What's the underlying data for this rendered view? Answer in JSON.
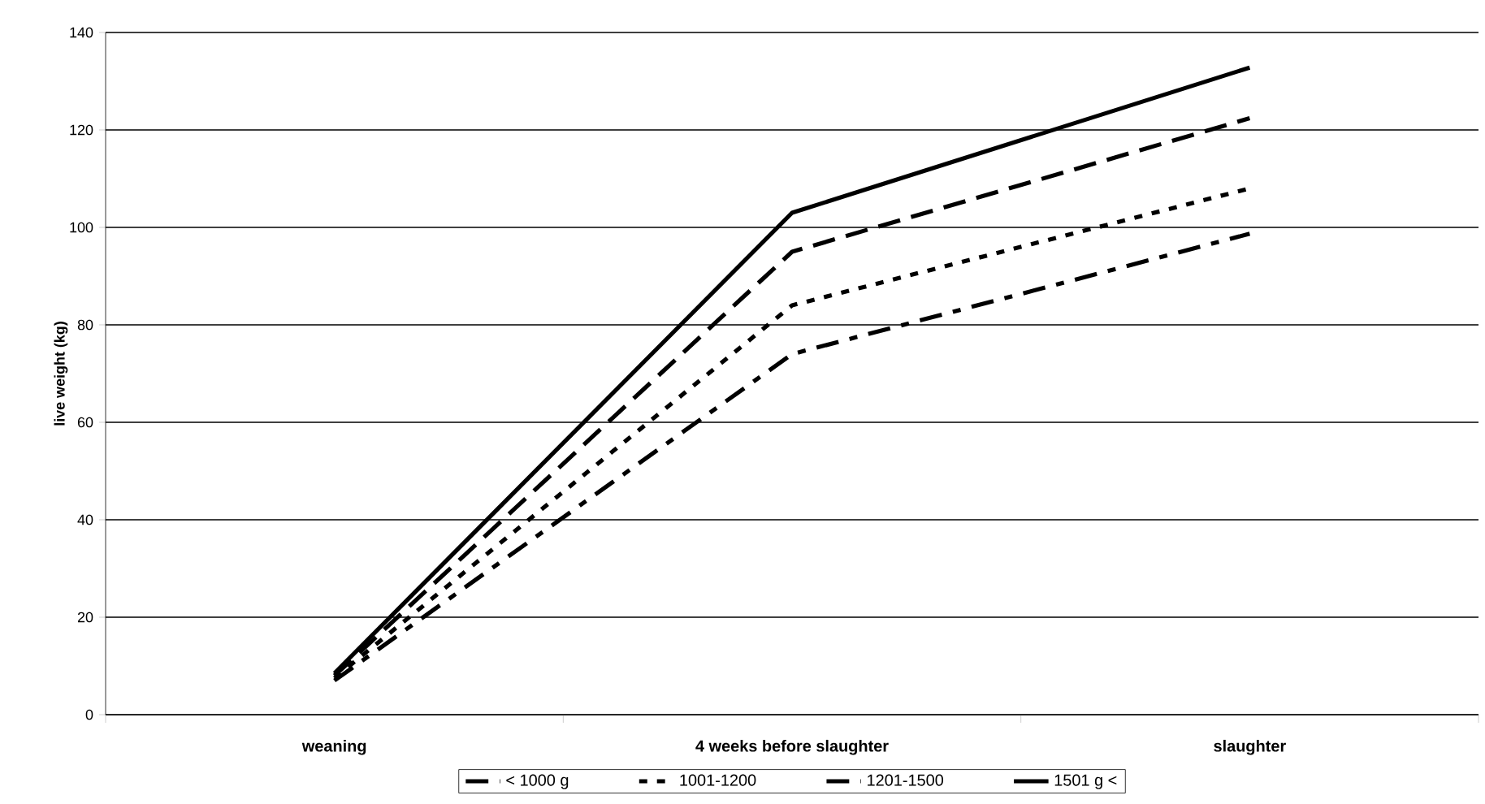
{
  "chart_data": {
    "type": "line",
    "ylabel": "live weight (kg)",
    "categories": [
      "weaning",
      "4 weeks before slaughter",
      "slaughter"
    ],
    "series": [
      {
        "name": "< 1000 g",
        "color": "#000000",
        "line_style": "dashdot",
        "values": [
          7,
          74,
          98.7
        ]
      },
      {
        "name": "1001-1200",
        "color": "#000000",
        "line_style": "dotted",
        "values": [
          7.5,
          84,
          108
        ]
      },
      {
        "name": "1201-1500",
        "color": "#000000",
        "line_style": "dashed",
        "values": [
          8,
          95,
          122.4
        ]
      },
      {
        "name": "1501 g <",
        "color": "#000000",
        "line_style": "solid",
        "values": [
          8.5,
          103,
          132.8
        ]
      }
    ],
    "ylim": [
      0,
      140
    ],
    "yticks": [
      0,
      20,
      40,
      60,
      80,
      100,
      120,
      140
    ],
    "grid": "y",
    "legend": "bottom",
    "marker": "none"
  }
}
